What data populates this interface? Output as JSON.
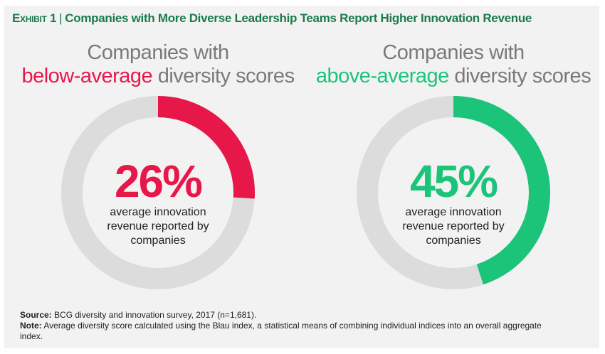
{
  "header": {
    "exhibit": "Exhibit 1",
    "title": "Companies with More Diverse Leadership Teams Report Higher Innovation Revenue"
  },
  "chart_data": {
    "type": "pie",
    "subtype": "donut",
    "charts": [
      {
        "heading_line1": "Companies with",
        "heading_highlight": "below-average",
        "heading_rest": "diversity scores",
        "value": 26,
        "value_label": "26%",
        "description": "average innovation revenue reported by companies",
        "color": "#e8174a",
        "remainder_color": "#dcdcdc"
      },
      {
        "heading_line1": "Companies with",
        "heading_highlight": "above-average",
        "heading_rest": "diversity scores",
        "value": 45,
        "value_label": "45%",
        "description": "average innovation revenue reported by companies",
        "color": "#1cc47a",
        "remainder_color": "#dcdcdc"
      }
    ]
  },
  "footer": {
    "source_label": "Source:",
    "source": "BCG diversity and innovation survey, 2017 (n=1,681).",
    "note_label": "Note:",
    "note": "Average diversity score calculated using the Blau index, a statistical means of combining individual indices into an overall aggregate index."
  }
}
